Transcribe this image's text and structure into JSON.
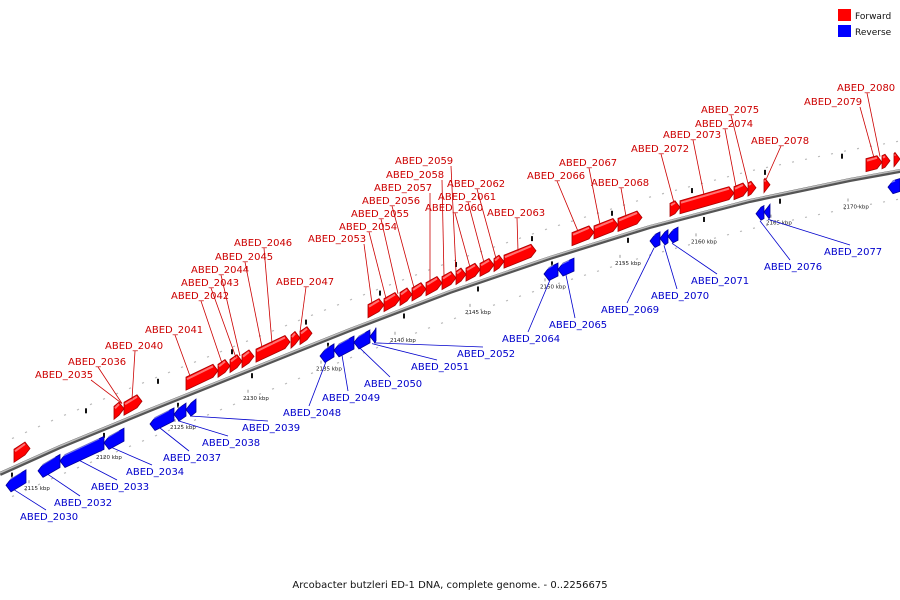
{
  "caption": "Arcobacter butzleri ED-1 DNA, complete genome. - 0..2256675",
  "legend": {
    "forward_label": "Forward",
    "reverse_label": "Reverse",
    "forward_color": "#ff0000",
    "reverse_color": "#0000ff"
  },
  "colors": {
    "forward": "#ff0000",
    "reverse": "#0000ff",
    "backbone": "#888888",
    "leader_forward": "#cc0000",
    "leader_reverse": "#0000cc"
  },
  "ticks": [
    "2115 kbp",
    "2120 kbp",
    "2125 kbp",
    "2130 kbp",
    "2135 kbp",
    "2140 kbp",
    "2145 kbp",
    "2150 kbp",
    "2155 kbp",
    "2160 kbp",
    "2165 kbp",
    "2170 kbp"
  ],
  "forward_genes": [
    "ABED_2035",
    "ABED_2036",
    "ABED_2040",
    "ABED_2041",
    "ABED_2042",
    "ABED_2043",
    "ABED_2044",
    "ABED_2045",
    "ABED_2046",
    "ABED_2047",
    "ABED_2053",
    "ABED_2054",
    "ABED_2055",
    "ABED_2056",
    "ABED_2057",
    "ABED_2058",
    "ABED_2059",
    "ABED_2060",
    "ABED_2061",
    "ABED_2062",
    "ABED_2063",
    "ABED_2066",
    "ABED_2067",
    "ABED_2068",
    "ABED_2072",
    "ABED_2073",
    "ABED_2074",
    "ABED_2075",
    "ABED_2078",
    "ABED_2079",
    "ABED_2080"
  ],
  "reverse_genes": [
    "ABED_2030",
    "ABED_2032",
    "ABED_2033",
    "ABED_2034",
    "ABED_2037",
    "ABED_2038",
    "ABED_2039",
    "ABED_2048",
    "ABED_2049",
    "ABED_2050",
    "ABED_2051",
    "ABED_2052",
    "ABED_2064",
    "ABED_2065",
    "ABED_2069",
    "ABED_2070",
    "ABED_2071",
    "ABED_2076",
    "ABED_2077"
  ]
}
